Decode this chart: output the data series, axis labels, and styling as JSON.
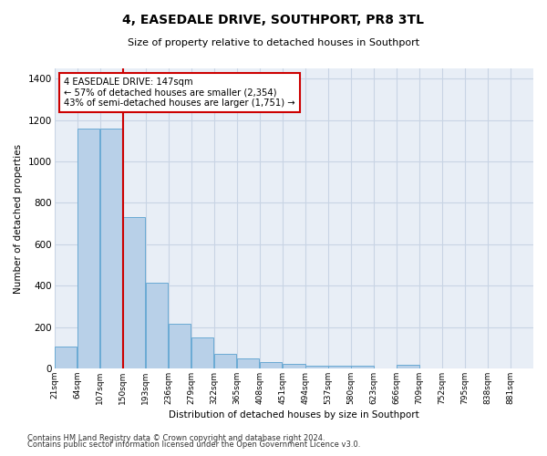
{
  "title": "4, EASEDALE DRIVE, SOUTHPORT, PR8 3TL",
  "subtitle": "Size of property relative to detached houses in Southport",
  "xlabel": "Distribution of detached houses by size in Southport",
  "ylabel": "Number of detached properties",
  "footer_line1": "Contains HM Land Registry data © Crown copyright and database right 2024.",
  "footer_line2": "Contains public sector information licensed under the Open Government Licence v3.0.",
  "bar_labels": [
    "21sqm",
    "64sqm",
    "107sqm",
    "150sqm",
    "193sqm",
    "236sqm",
    "279sqm",
    "322sqm",
    "365sqm",
    "408sqm",
    "451sqm",
    "494sqm",
    "537sqm",
    "580sqm",
    "623sqm",
    "666sqm",
    "709sqm",
    "752sqm",
    "795sqm",
    "838sqm",
    "881sqm"
  ],
  "annotation_line1": "4 EASEDALE DRIVE: 147sqm",
  "annotation_line2": "← 57% of detached houses are smaller (2,354)",
  "annotation_line3": "43% of semi-detached houses are larger (1,751) →",
  "vline_x": 150,
  "bar_color": "#b8d0e8",
  "bar_edge_color": "#6aaad4",
  "vline_color": "#cc0000",
  "annotation_box_edge_color": "#cc0000",
  "ylim": [
    0,
    1450
  ],
  "yticks": [
    0,
    200,
    400,
    600,
    800,
    1000,
    1200,
    1400
  ],
  "grid_color": "#c8d4e4",
  "bg_color": "#e8eef6",
  "bins_left_edges": [
    21,
    64,
    107,
    150,
    193,
    236,
    279,
    322,
    365,
    408,
    451,
    494,
    537,
    580,
    623,
    666,
    709,
    752,
    795,
    838,
    881
  ],
  "bin_width": 43,
  "bar_heights": [
    105,
    1160,
    1160,
    730,
    415,
    215,
    150,
    70,
    48,
    30,
    20,
    15,
    15,
    12,
    0,
    18,
    0,
    0,
    0,
    0,
    0
  ]
}
